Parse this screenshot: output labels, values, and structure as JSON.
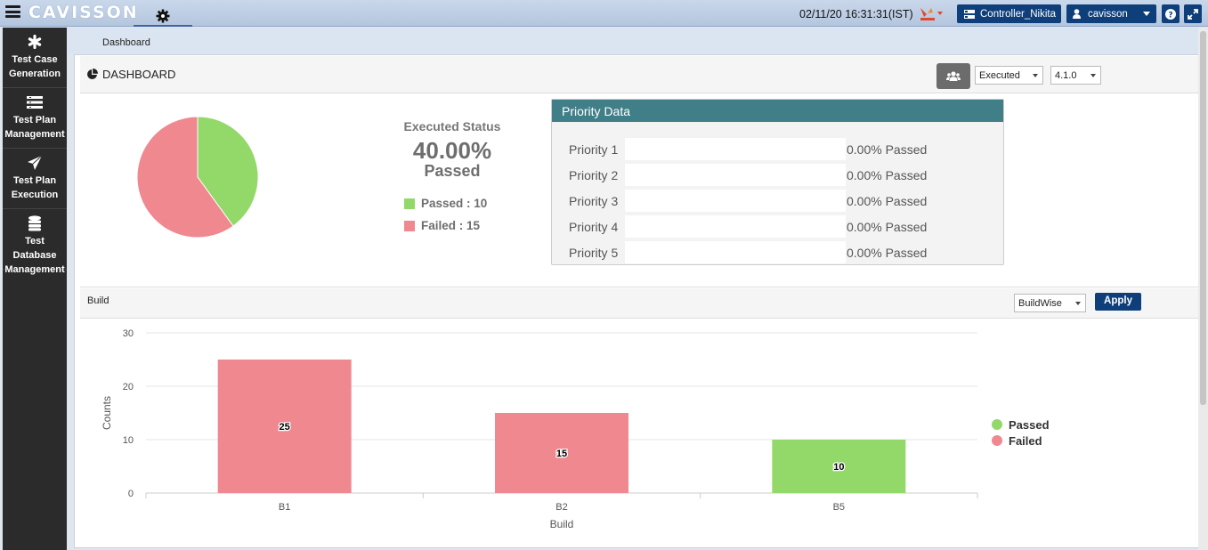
{
  "app": {
    "brand": "CAVISSON"
  },
  "header": {
    "datetime": "02/11/20 16:31:31(IST)",
    "controller": "Controller_Nikita",
    "user": "cavisson"
  },
  "sidebar": {
    "items": [
      {
        "label": "Test Case Generation",
        "icon": "asterisk-icon"
      },
      {
        "label": "Test Plan Management",
        "icon": "list-icon"
      },
      {
        "label": "Test Plan Execution",
        "icon": "paper-plane-icon"
      },
      {
        "label": "Test Database Management",
        "icon": "database-icon"
      }
    ]
  },
  "breadcrumb": "Dashboard",
  "dashboard": {
    "title": "DASHBOARD",
    "filter_selected": "Executed",
    "version_selected": "4.1.0",
    "status": {
      "label": "Executed Status",
      "percent": "40.00%",
      "passed_word": "Passed",
      "legend": [
        {
          "label": "Passed : 10",
          "value": 10,
          "color": "#93d96a"
        },
        {
          "label": "Failed : 15",
          "value": 15,
          "color": "#f08890"
        }
      ]
    },
    "priority": {
      "title": "Priority Data",
      "rows": [
        {
          "label": "Priority 1",
          "value": "0.00% Passed"
        },
        {
          "label": "Priority 2",
          "value": "0.00% Passed"
        },
        {
          "label": "Priority 3",
          "value": "0.00% Passed"
        },
        {
          "label": "Priority 4",
          "value": "0.00% Passed"
        },
        {
          "label": "Priority 5",
          "value": "0.00% Passed"
        }
      ]
    }
  },
  "build": {
    "label": "Build",
    "mode_selected": "BuildWise",
    "apply_label": "Apply"
  },
  "chart_data": {
    "type": "bar",
    "categories": [
      "B1",
      "B2",
      "B5"
    ],
    "series": [
      {
        "name": "Passed",
        "values": [
          0,
          0,
          10
        ],
        "color": "#93d96a"
      },
      {
        "name": "Failed",
        "values": [
          25,
          15,
          0
        ],
        "color": "#f08890"
      }
    ],
    "xlabel": "Build",
    "ylabel": "Counts",
    "ylim": [
      0,
      30
    ],
    "yticks": [
      0,
      10,
      20,
      30
    ],
    "legend_position": "right",
    "grid": true
  }
}
